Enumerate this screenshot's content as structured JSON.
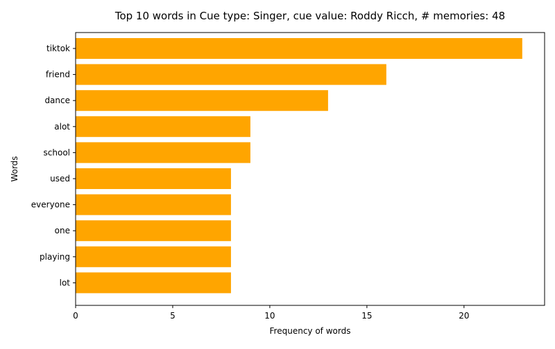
{
  "chart_data": {
    "type": "bar",
    "orientation": "horizontal",
    "title": "Top 10 words in Cue type: Singer, cue value: Roddy Ricch, # memories: 48",
    "xlabel": "Frequency of words",
    "ylabel": "Words",
    "categories": [
      "tiktok",
      "friend",
      "dance",
      "alot",
      "school",
      "used",
      "everyone",
      "one",
      "playing",
      "lot"
    ],
    "values": [
      23,
      16,
      13,
      9,
      9,
      8,
      8,
      8,
      8,
      8
    ],
    "xlim": [
      0,
      24.15
    ],
    "xticks": [
      "0",
      "5",
      "10",
      "15",
      "20"
    ],
    "bar_color": "#ffa500",
    "grid": false,
    "legend": "none"
  }
}
